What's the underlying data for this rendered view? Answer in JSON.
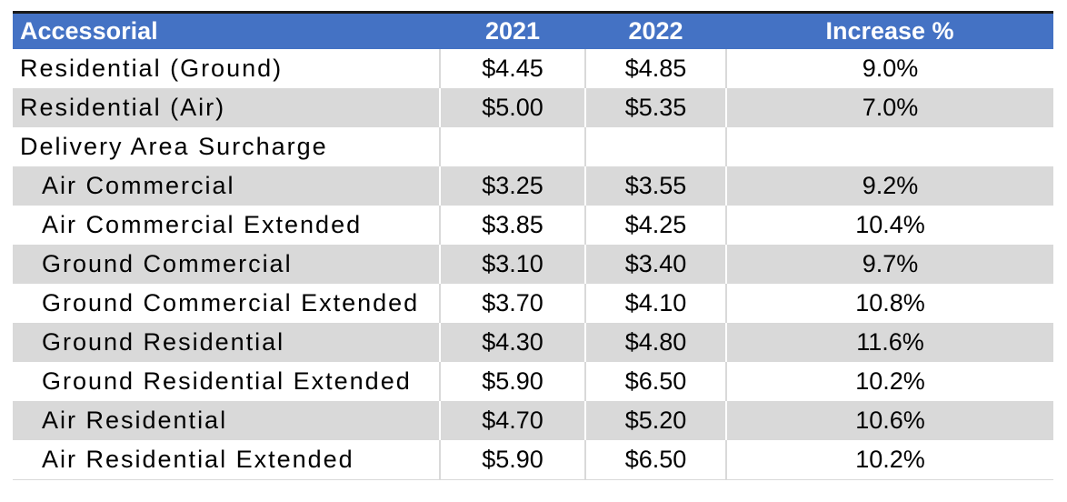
{
  "table": {
    "headers": [
      "Accessorial",
      "2021",
      "2022",
      "Increase %"
    ],
    "rows": [
      {
        "label": "Residential (Ground)",
        "indent": false,
        "y2021": "$4.45",
        "y2022": "$4.85",
        "increase": "9.0%"
      },
      {
        "label": "Residential (Air)",
        "indent": false,
        "y2021": "$5.00",
        "y2022": "$5.35",
        "increase": "7.0%"
      },
      {
        "label": "Delivery Area Surcharge",
        "indent": false,
        "y2021": "",
        "y2022": "",
        "increase": ""
      },
      {
        "label": "Air Commercial",
        "indent": true,
        "y2021": "$3.25",
        "y2022": "$3.55",
        "increase": "9.2%"
      },
      {
        "label": "Air Commercial Extended",
        "indent": true,
        "y2021": "$3.85",
        "y2022": "$4.25",
        "increase": "10.4%"
      },
      {
        "label": "Ground Commercial",
        "indent": true,
        "y2021": "$3.10",
        "y2022": "$3.40",
        "increase": "9.7%"
      },
      {
        "label": "Ground Commercial Extended",
        "indent": true,
        "y2021": "$3.70",
        "y2022": "$4.10",
        "increase": "10.8%"
      },
      {
        "label": "Ground Residential",
        "indent": true,
        "y2021": "$4.30",
        "y2022": "$4.80",
        "increase": "11.6%"
      },
      {
        "label": "Ground Residential Extended",
        "indent": true,
        "y2021": "$5.90",
        "y2022": "$6.50",
        "increase": "10.2%"
      },
      {
        "label": "Air Residential",
        "indent": true,
        "y2021": "$4.70",
        "y2022": "$5.20",
        "increase": "10.6%"
      },
      {
        "label": "Air Residential Extended",
        "indent": true,
        "y2021": "$5.90",
        "y2022": "$6.50",
        "increase": "10.2%"
      }
    ]
  },
  "colors": {
    "header_bg": "#4472c4",
    "header_text": "#ffffff",
    "band_bg": "#d9d9d9",
    "plain_bg": "#ffffff"
  }
}
